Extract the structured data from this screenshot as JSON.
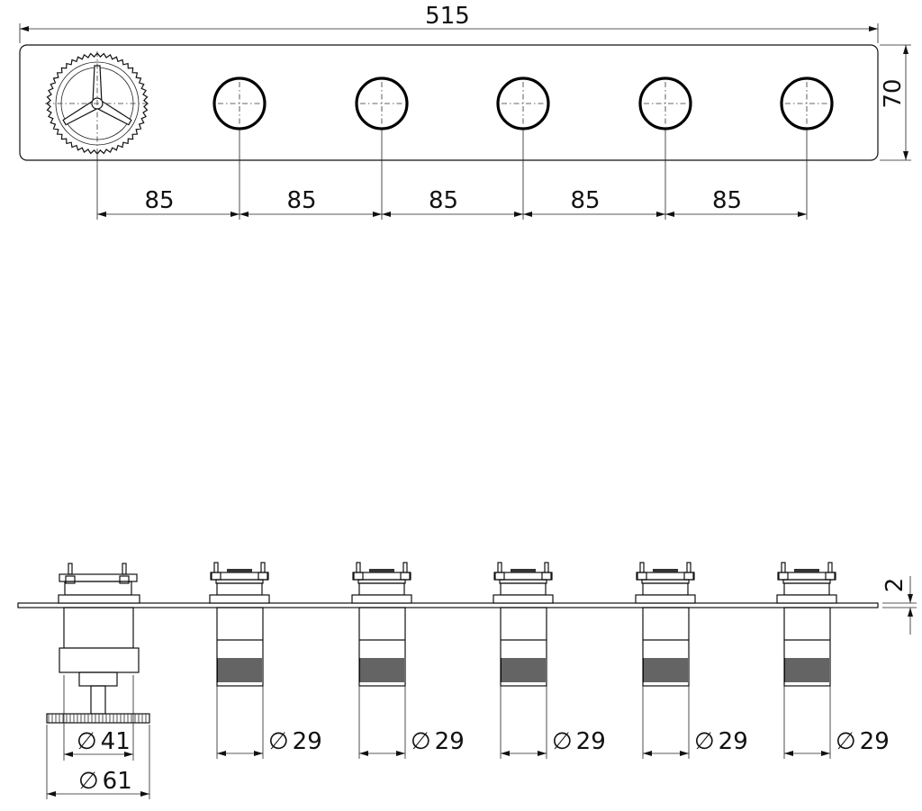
{
  "top_view": {
    "overall_length": "515",
    "height": "70",
    "spacings": [
      "85",
      "85",
      "85",
      "85",
      "85"
    ]
  },
  "side_view": {
    "plate_thickness": "2",
    "knob_diameters": [
      "41",
      "61"
    ],
    "valve_diameters": [
      "29",
      "29",
      "29",
      "29",
      "29"
    ],
    "diameter_symbol": "∅"
  }
}
